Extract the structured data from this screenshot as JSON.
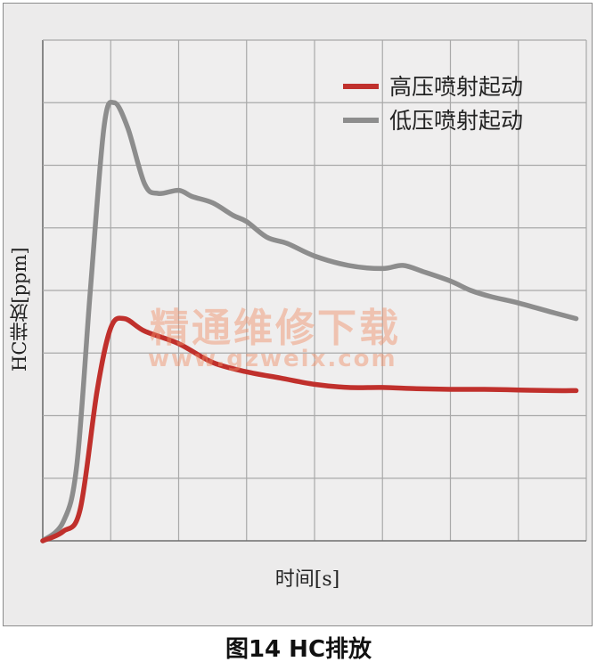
{
  "chart_data": {
    "type": "line",
    "title": "图14 HC排放",
    "xlabel": "时间[s]",
    "ylabel": "HC排放[ppm]",
    "grid": true,
    "legend_position": "top-right",
    "xlim": [
      0,
      8
    ],
    "ylim": [
      0,
      8
    ],
    "series": [
      {
        "name": "高压喷射起动",
        "color": "#c0302c",
        "x": [
          0,
          0.3,
          0.55,
          0.8,
          1.0,
          1.2,
          1.5,
          2.0,
          2.5,
          3.0,
          3.5,
          4.0,
          4.5,
          5.0,
          5.5,
          6.0,
          6.5,
          7.0,
          7.5,
          7.85
        ],
        "y": [
          0,
          0.15,
          0.5,
          2.4,
          3.4,
          3.55,
          3.35,
          3.15,
          2.85,
          2.7,
          2.6,
          2.5,
          2.45,
          2.45,
          2.43,
          2.42,
          2.42,
          2.41,
          2.4,
          2.4
        ]
      },
      {
        "name": "低压喷射起动",
        "color": "#8d8d8d",
        "x": [
          0,
          0.3,
          0.5,
          0.7,
          0.9,
          1.05,
          1.25,
          1.5,
          1.7,
          2.0,
          2.2,
          2.5,
          2.8,
          3.0,
          3.3,
          3.6,
          4.0,
          4.5,
          5.0,
          5.3,
          5.6,
          6.0,
          6.3,
          6.6,
          7.0,
          7.5,
          7.85
        ],
        "y": [
          0,
          0.3,
          1.2,
          4.0,
          6.6,
          7.0,
          6.6,
          5.7,
          5.55,
          5.6,
          5.5,
          5.4,
          5.2,
          5.1,
          4.85,
          4.75,
          4.55,
          4.4,
          4.35,
          4.4,
          4.3,
          4.15,
          4.0,
          3.9,
          3.8,
          3.65,
          3.55
        ]
      }
    ]
  },
  "watermark": {
    "line1": "精通维修下载",
    "line2": "www.gzweix.com"
  }
}
